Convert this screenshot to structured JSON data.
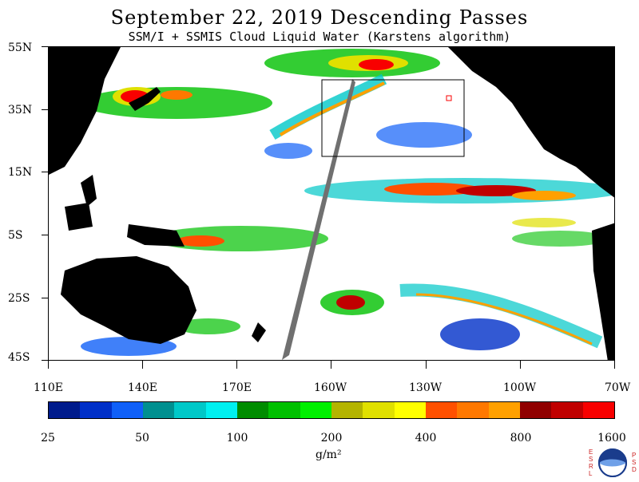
{
  "header": {
    "title": "September 22, 2019  Descending Passes",
    "subtitle": "SSM/I + SSMIS Cloud Liquid Water (Karstens algorithm)"
  },
  "map": {
    "latitude_labels": [
      "55N",
      "35N",
      "15N",
      "5S",
      "25S",
      "45S"
    ],
    "longitude_labels": [
      "110E",
      "140E",
      "170E",
      "160W",
      "130W",
      "100W",
      "70W"
    ],
    "colors": {
      "land": "#000000",
      "ocean_clear": "#ffffff",
      "missing_swath_gap": "#707070",
      "inset_box": "#000000"
    }
  },
  "colorbar": {
    "colors": [
      "#001b8c",
      "#0030c8",
      "#1060f8",
      "#009090",
      "#00c8c8",
      "#00f0f0",
      "#008c00",
      "#00c000",
      "#00f000",
      "#b4b400",
      "#e0e000",
      "#ffff00",
      "#ff5000",
      "#ff7800",
      "#ffa000",
      "#900000",
      "#c00000",
      "#f80000"
    ],
    "labels": [
      "25",
      "50",
      "100",
      "200",
      "400",
      "800",
      "1600"
    ],
    "units": "g/m²"
  },
  "logo": {
    "left_letters": "ESRL",
    "right_letters": "PSD",
    "badge": "NOAA"
  }
}
